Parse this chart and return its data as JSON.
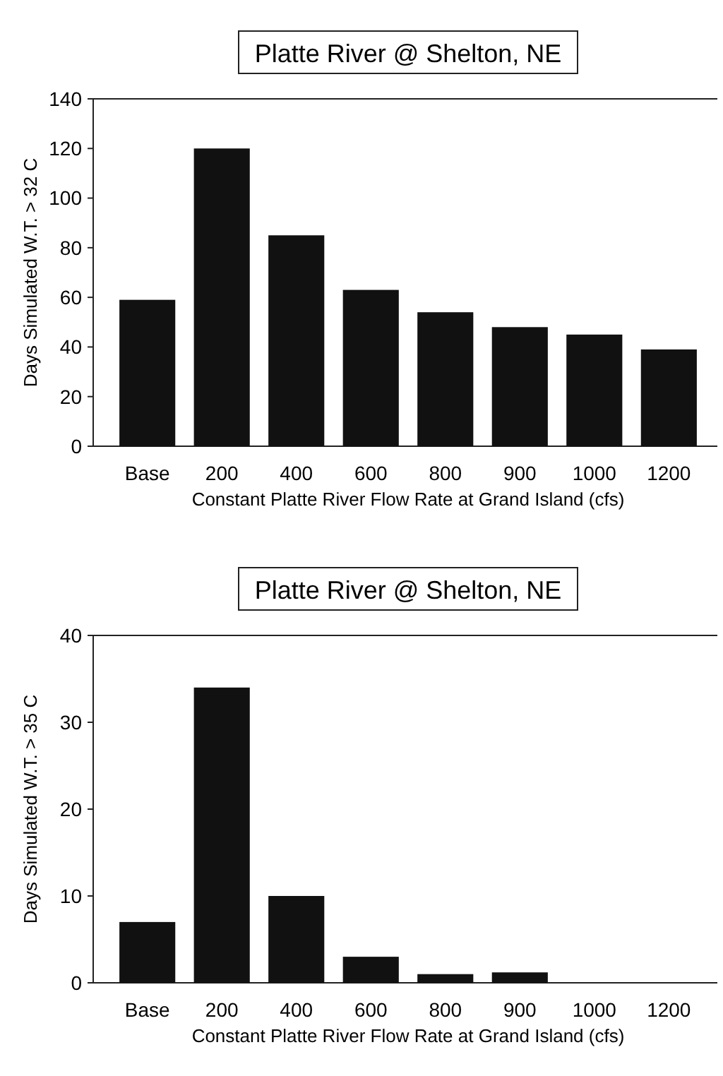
{
  "chart_data": [
    {
      "type": "bar",
      "title": "Platte River @ Shelton, NE",
      "xlabel": "Constant Platte River Flow Rate at Grand Island (cfs)",
      "ylabel": "Days Simulated W.T. > 32 C",
      "categories": [
        "Base",
        "200",
        "400",
        "600",
        "800",
        "900",
        "1000",
        "1200"
      ],
      "values": [
        59,
        120,
        85,
        63,
        54,
        48,
        45,
        39
      ],
      "color": "#111111",
      "ylim": [
        0,
        140
      ],
      "yticks": [
        0,
        20,
        40,
        60,
        80,
        100,
        120,
        140
      ]
    },
    {
      "type": "bar",
      "title": "Platte River @ Shelton, NE",
      "xlabel": "Constant Platte River Flow Rate at Grand Island (cfs)",
      "ylabel": "Days Simulated W.T. > 35 C",
      "categories": [
        "Base",
        "200",
        "400",
        "600",
        "800",
        "900",
        "1000",
        "1200"
      ],
      "values": [
        7,
        34,
        10,
        3,
        1,
        1.2,
        0,
        0
      ],
      "color": "#111111",
      "ylim": [
        0,
        40
      ],
      "yticks": [
        0,
        10,
        20,
        30,
        40
      ]
    }
  ]
}
